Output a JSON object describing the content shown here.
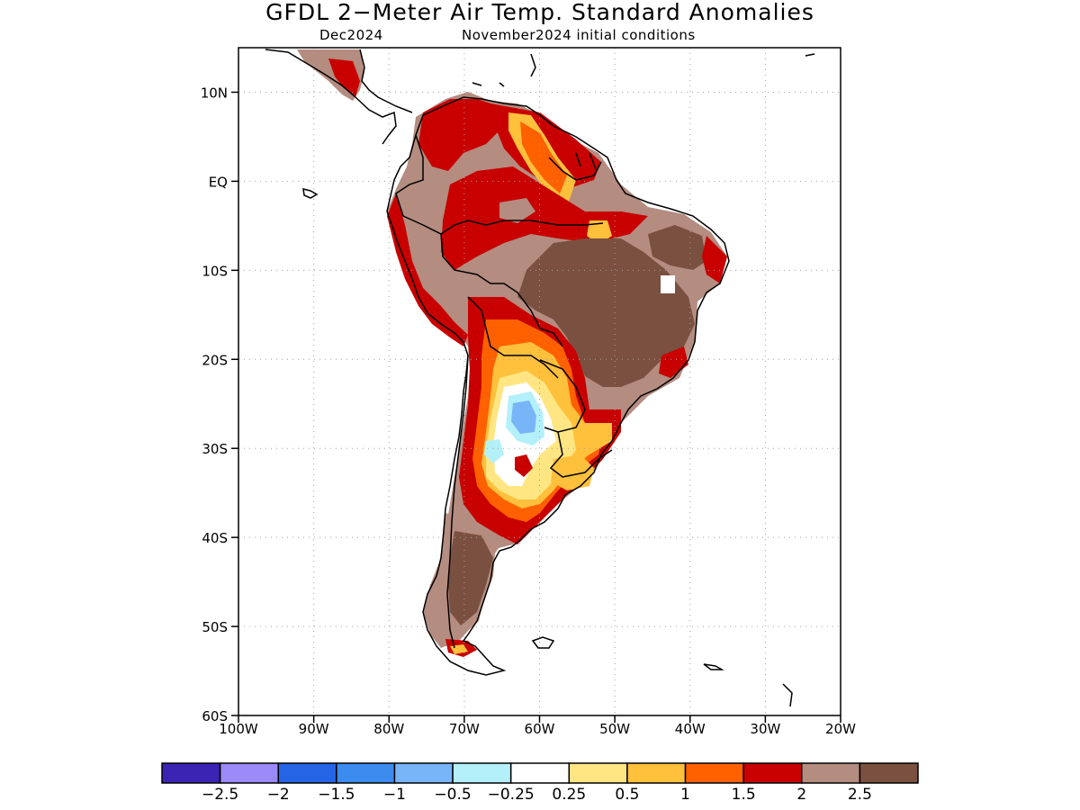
{
  "title": "GFDL 2−Meter Air Temp. Standard Anomalies",
  "forecast_month": "Dec2024",
  "initial_conditions": "November2024 initial conditions",
  "map": {
    "lon_range": [
      -100,
      -20
    ],
    "lat_range": [
      -60,
      15
    ],
    "grid": "dotted"
  },
  "lat_ticks": [
    {
      "value": 10,
      "label": "10N"
    },
    {
      "value": 0,
      "label": "EQ"
    },
    {
      "value": -10,
      "label": "10S"
    },
    {
      "value": -20,
      "label": "20S"
    },
    {
      "value": -30,
      "label": "30S"
    },
    {
      "value": -40,
      "label": "40S"
    },
    {
      "value": -50,
      "label": "50S"
    },
    {
      "value": -60,
      "label": "60S"
    }
  ],
  "lon_ticks": [
    {
      "value": -100,
      "label": "100W"
    },
    {
      "value": -90,
      "label": "90W"
    },
    {
      "value": -80,
      "label": "80W"
    },
    {
      "value": -70,
      "label": "70W"
    },
    {
      "value": -60,
      "label": "60W"
    },
    {
      "value": -50,
      "label": "50W"
    },
    {
      "value": -40,
      "label": "40W"
    },
    {
      "value": -30,
      "label": "30W"
    },
    {
      "value": -20,
      "label": "20W"
    }
  ],
  "colorbar": {
    "colors": [
      "#3b24b4",
      "#9b8af8",
      "#2465e6",
      "#3c8cf0",
      "#78b4f8",
      "#b4f0fa",
      "#ffffff",
      "#ffe682",
      "#ffc03c",
      "#ff6000",
      "#c80000",
      "#b48c80",
      "#7a5040"
    ],
    "labels": [
      "−2.5",
      "−2",
      "−1.5",
      "−1",
      "−0.5",
      "−0.25",
      "0.25",
      "0.5",
      "1",
      "1.5",
      "2",
      "2.5"
    ]
  },
  "palette": {
    "land_border": "#000000",
    "grid": "#a0a0a0"
  }
}
